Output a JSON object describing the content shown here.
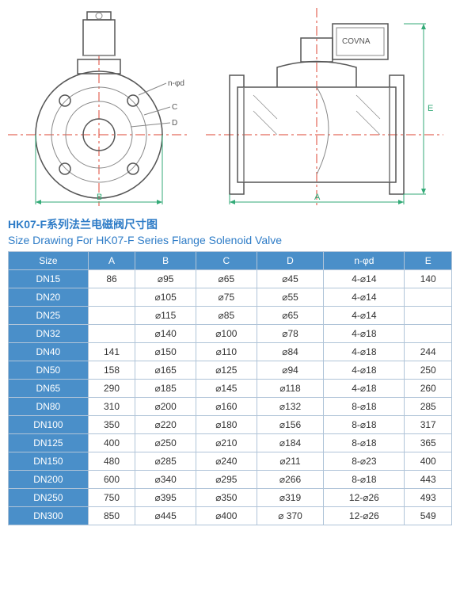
{
  "diagram": {
    "labels": {
      "n_phi_d": "n-φd",
      "C": "C",
      "D": "D",
      "B": "B",
      "A": "A",
      "E": "E",
      "covna": "COVNA"
    }
  },
  "title": {
    "cn": "HK07-F系列法兰电磁阀尺寸图",
    "en": "Size Drawing For HK07-F Series Flange Solenoid Valve"
  },
  "table": {
    "columns": [
      "Size",
      "A",
      "B",
      "C",
      "D",
      "n-φd",
      "E"
    ],
    "rows": [
      [
        "DN15",
        "86",
        "⌀95",
        "⌀65",
        "⌀45",
        "4-⌀14",
        "140"
      ],
      [
        "DN20",
        "",
        "⌀105",
        "⌀75",
        "⌀55",
        "4-⌀14",
        ""
      ],
      [
        "DN25",
        "",
        "⌀115",
        "⌀85",
        "⌀65",
        "4-⌀14",
        ""
      ],
      [
        "DN32",
        "",
        "⌀140",
        "⌀100",
        "⌀78",
        "4-⌀18",
        ""
      ],
      [
        "DN40",
        "141",
        "⌀150",
        "⌀110",
        "⌀84",
        "4-⌀18",
        "244"
      ],
      [
        "DN50",
        "158",
        "⌀165",
        "⌀125",
        "⌀94",
        "4-⌀18",
        "250"
      ],
      [
        "DN65",
        "290",
        "⌀185",
        "⌀145",
        "⌀118",
        "4-⌀18",
        "260"
      ],
      [
        "DN80",
        "310",
        "⌀200",
        "⌀160",
        "⌀132",
        "8-⌀18",
        "285"
      ],
      [
        "DN100",
        "350",
        "⌀220",
        "⌀180",
        "⌀156",
        "8-⌀18",
        "317"
      ],
      [
        "DN125",
        "400",
        "⌀250",
        "⌀210",
        "⌀184",
        "8-⌀18",
        "365"
      ],
      [
        "DN150",
        "480",
        "⌀285",
        "⌀240",
        "⌀211",
        "8-⌀23",
        "400"
      ],
      [
        "DN200",
        "600",
        "⌀340",
        "⌀295",
        "⌀266",
        "8-⌀18",
        "443"
      ],
      [
        "DN250",
        "750",
        "⌀395",
        "⌀350",
        "⌀319",
        "12-⌀26",
        "493"
      ],
      [
        "DN300",
        "850",
        "⌀445",
        "⌀400",
        "⌀ 370",
        "12-⌀26",
        "549"
      ]
    ],
    "header_bg": "#4a8fc9",
    "header_fg": "#ffffff",
    "border_color": "#b0c4d8"
  }
}
